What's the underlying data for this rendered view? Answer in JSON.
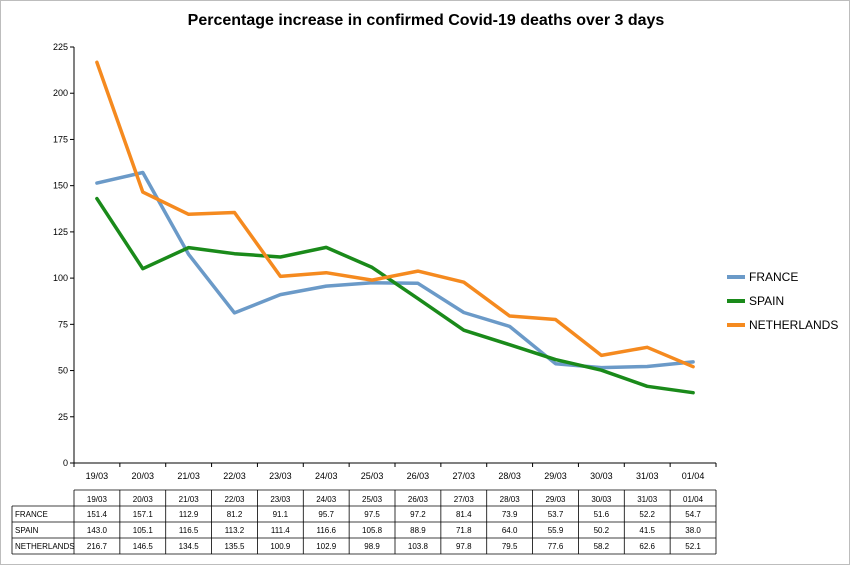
{
  "chart_data": {
    "type": "line",
    "title": "Percentage increase in confirmed Covid-19 deaths over 3 days",
    "categories": [
      "19/03",
      "20/03",
      "21/03",
      "22/03",
      "23/03",
      "24/03",
      "25/03",
      "26/03",
      "27/03",
      "28/03",
      "29/03",
      "30/03",
      "31/03",
      "01/04"
    ],
    "ylim": [
      0,
      225
    ],
    "yticks": [
      0,
      25,
      50,
      75,
      100,
      125,
      150,
      175,
      200,
      225
    ],
    "legend_position": "right",
    "series": [
      {
        "name": "FRANCE",
        "color": "#6b9ac8",
        "values": [
          151.4,
          157.1,
          112.9,
          81.2,
          91.1,
          95.7,
          97.5,
          97.2,
          81.4,
          73.9,
          53.7,
          51.6,
          52.2,
          54.7
        ]
      },
      {
        "name": "SPAIN",
        "color": "#1a8a1a",
        "values": [
          143.0,
          105.1,
          116.5,
          113.2,
          111.4,
          116.6,
          105.8,
          88.9,
          71.8,
          64.0,
          55.9,
          50.2,
          41.5,
          38.0
        ]
      },
      {
        "name": "NETHERLANDS",
        "color": "#f58a1f",
        "values": [
          216.7,
          146.5,
          134.5,
          135.5,
          100.9,
          102.9,
          98.9,
          103.8,
          97.8,
          79.5,
          77.6,
          58.2,
          62.6,
          52.1
        ]
      }
    ],
    "data_table": {
      "row_labels": [
        "FRANCE",
        "SPAIN",
        "NETHERLANDS"
      ],
      "cells": [
        [
          "151.4",
          "157.1",
          "112.9",
          "81.2",
          "91.1",
          "95.7",
          "97.5",
          "97.2",
          "81.4",
          "73.9",
          "53.7",
          "51.6",
          "52.2",
          "54.7"
        ],
        [
          "143.0",
          "105.1",
          "116.5",
          "113.2",
          "111.4",
          "116.6",
          "105.8",
          "88.9",
          "71.8",
          "64.0",
          "55.9",
          "50.2",
          "41.5",
          "38.0"
        ],
        [
          "216.7",
          "146.5",
          "134.5",
          "135.5",
          "100.9",
          "102.9",
          "98.9",
          "103.8",
          "97.8",
          "79.5",
          "77.6",
          "58.2",
          "62.6",
          "52.1"
        ]
      ]
    }
  }
}
